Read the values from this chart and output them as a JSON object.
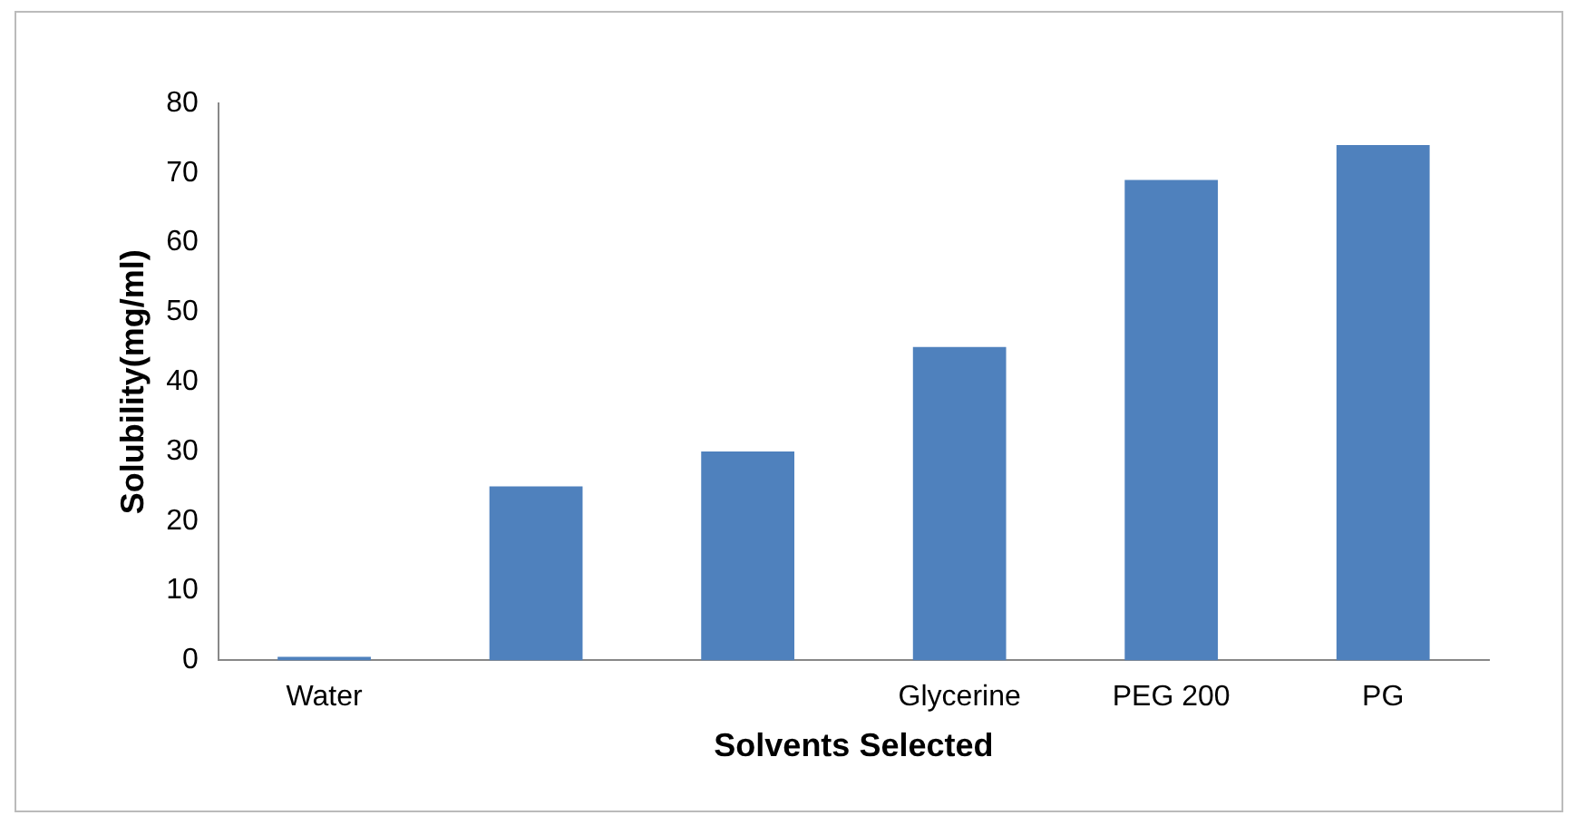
{
  "chart_data": {
    "type": "bar",
    "xlabel": "Solvents Selected",
    "ylabel": "Solubility(mg/ml)",
    "categories": [
      "Water",
      null,
      null,
      "Glycerine",
      "PEG 200",
      "PG"
    ],
    "values": [
      0.5,
      25,
      30,
      45,
      69,
      74
    ],
    "color": "#4f81bd",
    "ylim": [
      0,
      80
    ],
    "yticks": [
      0,
      10,
      20,
      30,
      40,
      50,
      60,
      70,
      80
    ],
    "grid": false,
    "legend": false
  }
}
